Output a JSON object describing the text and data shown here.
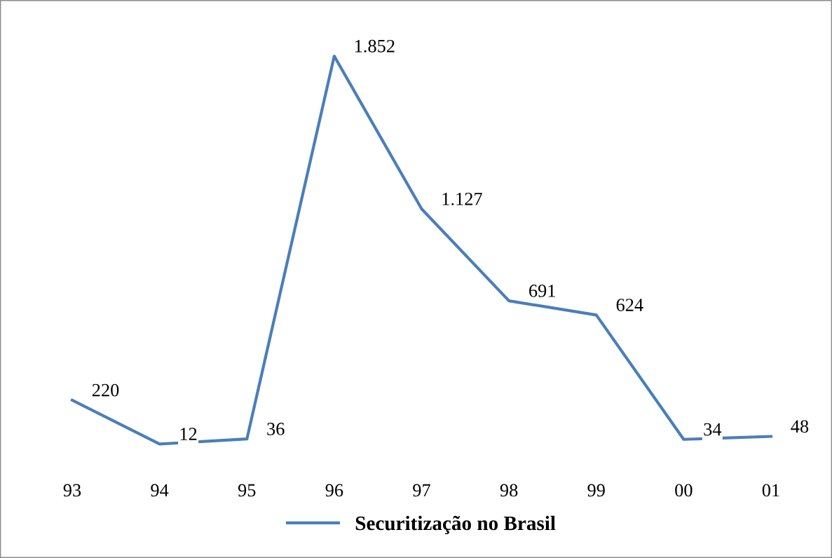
{
  "chart_data": {
    "type": "line",
    "categories": [
      "93",
      "94",
      "95",
      "96",
      "97",
      "98",
      "99",
      "00",
      "01"
    ],
    "series": [
      {
        "name": "Securitização no Brasil",
        "color": "#4a7ebb",
        "values": [
          220,
          12,
          36,
          1852,
          1127,
          691,
          624,
          34,
          48
        ],
        "value_labels": [
          "220",
          "12",
          "36",
          "1.852",
          "1.127",
          "691",
          "624",
          "34",
          "48"
        ]
      }
    ],
    "legend": "bottom"
  }
}
